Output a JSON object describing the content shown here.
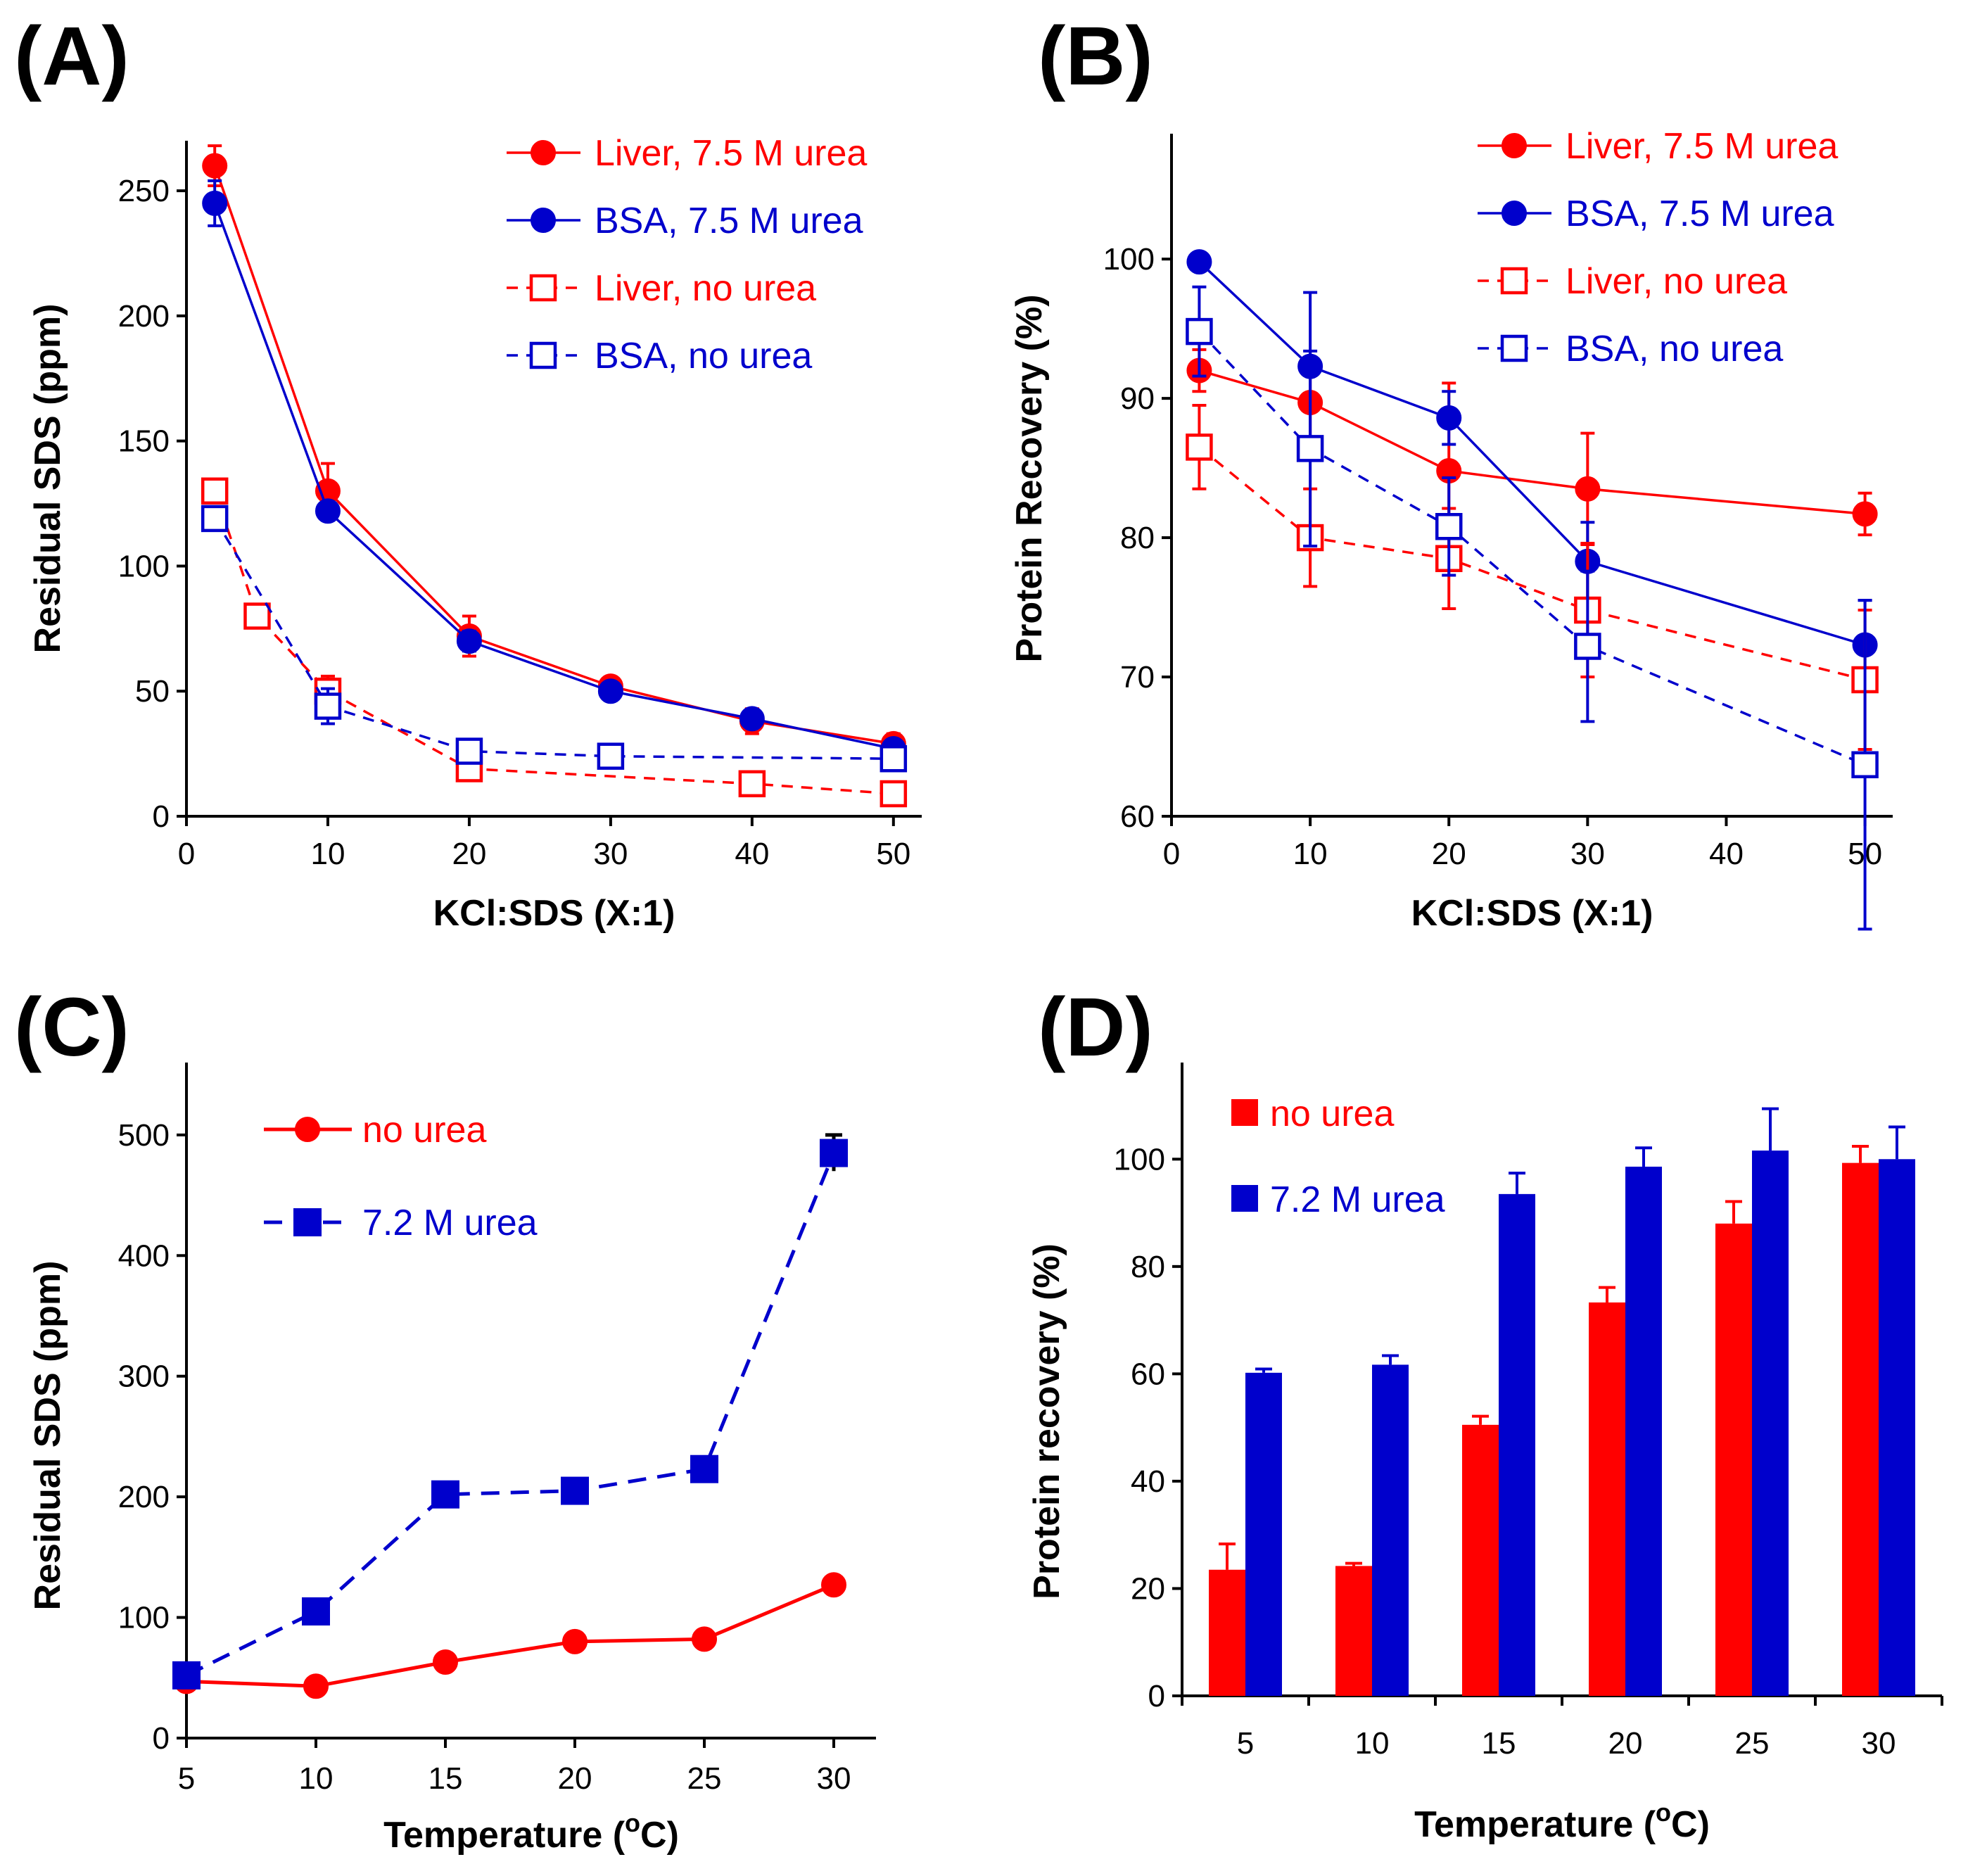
{
  "chart_data": [
    {
      "id": "A",
      "type": "line",
      "panel_label": "(A)",
      "xlabel": "KCl:SDS (X:1)",
      "ylabel": "Residual SDS (ppm)",
      "xlim": [
        0,
        52
      ],
      "ylim": [
        0,
        270
      ],
      "xticks": [
        0,
        10,
        20,
        30,
        40,
        50
      ],
      "yticks": [
        0,
        50,
        100,
        150,
        200,
        250
      ],
      "legend_position": "top-right",
      "series": [
        {
          "name": "Liver, 7.5 M urea",
          "color": "#ff0000",
          "style": "solid",
          "marker": "circle",
          "x": [
            2,
            10,
            20,
            30,
            40,
            50
          ],
          "y": [
            260,
            130,
            72,
            52,
            38,
            29
          ],
          "err": [
            8,
            11,
            8,
            0,
            5,
            4
          ]
        },
        {
          "name": "BSA, 7.5 M urea",
          "color": "#0000cc",
          "style": "solid",
          "marker": "circle",
          "x": [
            2,
            10,
            20,
            30,
            40,
            50
          ],
          "y": [
            245,
            122,
            70,
            50,
            39,
            27
          ],
          "err": [
            9,
            3,
            4,
            0,
            2,
            3
          ]
        },
        {
          "name": "Liver, no urea",
          "color": "#ff0000",
          "style": "dashed",
          "marker": "open-square",
          "x": [
            2,
            5,
            10,
            20,
            40,
            50
          ],
          "y": [
            130,
            80,
            50,
            19,
            13,
            9
          ],
          "err": [
            0,
            0,
            6,
            0,
            0,
            0
          ]
        },
        {
          "name": "BSA, no urea",
          "color": "#0000cc",
          "style": "dashed",
          "marker": "open-square",
          "x": [
            2,
            10,
            20,
            30,
            50
          ],
          "y": [
            119,
            44,
            26,
            24,
            23
          ],
          "err": [
            0,
            7,
            4,
            0,
            4
          ]
        }
      ]
    },
    {
      "id": "B",
      "type": "line",
      "panel_label": "(B)",
      "xlabel": "KCl:SDS (X:1)",
      "ylabel": "Protein Recovery (%)",
      "xlim": [
        0,
        52
      ],
      "ylim": [
        60,
        109
      ],
      "xticks": [
        0,
        10,
        20,
        30,
        40,
        50
      ],
      "yticks": [
        60,
        70,
        80,
        90,
        100
      ],
      "legend_position": "top-right",
      "series": [
        {
          "name": "Liver, 7.5 M urea",
          "color": "#ff0000",
          "style": "solid",
          "marker": "circle",
          "x": [
            2,
            10,
            20,
            30,
            50
          ],
          "y": [
            92,
            89.7,
            84.8,
            83.5,
            81.7
          ],
          "err": [
            1.5,
            3,
            6.3,
            4,
            1.5
          ]
        },
        {
          "name": "BSA, 7.5 M urea",
          "color": "#0000cc",
          "style": "solid",
          "marker": "circle",
          "x": [
            2,
            10,
            20,
            30,
            50
          ],
          "y": [
            99.8,
            92.3,
            88.6,
            78.3,
            72.3
          ],
          "err": [
            0,
            5.3,
            1.9,
            2.8,
            3.2
          ]
        },
        {
          "name": "Liver, no urea",
          "color": "#ff0000",
          "style": "dashed",
          "marker": "open-square",
          "x": [
            2,
            10,
            20,
            30,
            50
          ],
          "y": [
            86.5,
            80,
            78.5,
            74.8,
            69.8
          ],
          "err": [
            3,
            3.5,
            3.6,
            4.8,
            5
          ]
        },
        {
          "name": "BSA, no urea",
          "color": "#0000cc",
          "style": "dashed",
          "marker": "open-square",
          "x": [
            2,
            10,
            20,
            30,
            50
          ],
          "y": [
            94.8,
            86.4,
            80.8,
            72.2,
            63.7
          ],
          "err": [
            3.2,
            7,
            3.5,
            5.4,
            11.8
          ]
        }
      ]
    },
    {
      "id": "C",
      "type": "line",
      "panel_label": "(C)",
      "xlabel_pre": "Temperature (",
      "xlabel_sup": "o",
      "xlabel_post": "C)",
      "ylabel": "Residual SDS (ppm)",
      "categories": [
        "5",
        "10",
        "15",
        "20",
        "25",
        "30"
      ],
      "ylim": [
        0,
        560
      ],
      "yticks": [
        0,
        100,
        200,
        300,
        400,
        500
      ],
      "legend_position": "top-left",
      "series": [
        {
          "name": "no urea",
          "color": "#ff0000",
          "style": "solid",
          "marker": "circle",
          "values": [
            47,
            43,
            63,
            80,
            82,
            127
          ],
          "err": [
            0,
            0,
            0,
            0,
            0,
            0
          ]
        },
        {
          "name": "7.2 M urea",
          "color": "#0000cc",
          "style": "dashed",
          "marker": "square",
          "values": [
            52,
            105,
            202,
            205,
            223,
            485
          ],
          "err": [
            0,
            0,
            0,
            0,
            0,
            15
          ]
        }
      ]
    },
    {
      "id": "D",
      "type": "bar",
      "panel_label": "(D)",
      "xlabel_pre": "Temperature (",
      "xlabel_sup": "o",
      "xlabel_post": "C)",
      "ylabel": "Protein recovery (%)",
      "categories": [
        "5",
        "10",
        "15",
        "20",
        "25",
        "30"
      ],
      "ylim": [
        0,
        118
      ],
      "yticks": [
        0,
        20,
        40,
        60,
        80,
        100
      ],
      "legend_position": "top-left",
      "series": [
        {
          "name": "no urea",
          "color": "#ff0000",
          "values": [
            23.5,
            24.2,
            50.5,
            73.3,
            88,
            99.3
          ],
          "err": [
            4.8,
            0.5,
            1.6,
            2.8,
            4.1,
            3.1
          ]
        },
        {
          "name": "7.2 M urea",
          "color": "#0000cc",
          "values": [
            60.2,
            61.7,
            93.5,
            98.6,
            101.6,
            100
          ],
          "err": [
            0.7,
            1.7,
            3.9,
            3.5,
            7.8,
            6
          ]
        }
      ]
    }
  ]
}
